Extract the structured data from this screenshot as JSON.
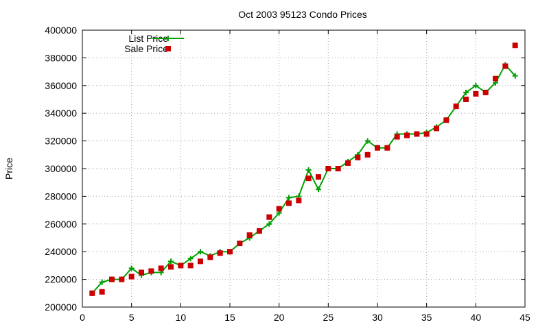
{
  "chart_data": {
    "type": "line",
    "title": "Oct 2003 95123 Condo Prices",
    "xlabel": "",
    "ylabel": "Price",
    "xlim": [
      0,
      45
    ],
    "ylim": [
      200000,
      400000
    ],
    "xticks": [
      0,
      5,
      10,
      15,
      20,
      25,
      30,
      35,
      40,
      45
    ],
    "yticks": [
      200000,
      220000,
      240000,
      260000,
      280000,
      300000,
      320000,
      340000,
      360000,
      380000,
      400000
    ],
    "grid": true,
    "legend_position": "top-left",
    "series": [
      {
        "name": "List Price",
        "style": "line-with-plus-markers",
        "color": "#00a000",
        "x": [
          1,
          2,
          3,
          4,
          5,
          6,
          7,
          8,
          9,
          10,
          11,
          12,
          13,
          14,
          15,
          16,
          17,
          18,
          19,
          20,
          21,
          22,
          23,
          24,
          25,
          26,
          27,
          28,
          29,
          30,
          31,
          32,
          33,
          34,
          35,
          36,
          37,
          38,
          39,
          40,
          41,
          42,
          43,
          44
        ],
        "values": [
          210000,
          218000,
          220000,
          220000,
          228000,
          223000,
          225000,
          225000,
          233000,
          230000,
          235000,
          240000,
          237000,
          240000,
          240000,
          246000,
          250000,
          255000,
          260000,
          268000,
          279000,
          280000,
          299000,
          285000,
          300000,
          300000,
          305000,
          310000,
          320000,
          315000,
          315000,
          325000,
          325000,
          325000,
          326000,
          330000,
          335000,
          345000,
          355000,
          360000,
          355000,
          362000,
          375000,
          367000
        ]
      },
      {
        "name": "Sale Price",
        "style": "square-markers",
        "color": "#cc0000",
        "x": [
          1,
          2,
          3,
          4,
          5,
          6,
          7,
          8,
          9,
          10,
          11,
          12,
          13,
          14,
          15,
          16,
          17,
          18,
          19,
          20,
          21,
          22,
          23,
          24,
          25,
          26,
          27,
          28,
          29,
          30,
          31,
          32,
          33,
          34,
          35,
          36,
          37,
          38,
          39,
          40,
          41,
          42,
          43,
          44
        ],
        "values": [
          210000,
          211000,
          220000,
          220000,
          222000,
          225000,
          226000,
          228000,
          229000,
          230000,
          230000,
          233000,
          236000,
          239000,
          240000,
          246000,
          252000,
          255000,
          265000,
          271000,
          275000,
          277000,
          293000,
          294000,
          300000,
          300000,
          304000,
          308000,
          310000,
          315000,
          315000,
          323000,
          324000,
          325000,
          325000,
          329000,
          335000,
          345000,
          350000,
          354000,
          355000,
          365000,
          374000,
          389000
        ]
      }
    ]
  }
}
